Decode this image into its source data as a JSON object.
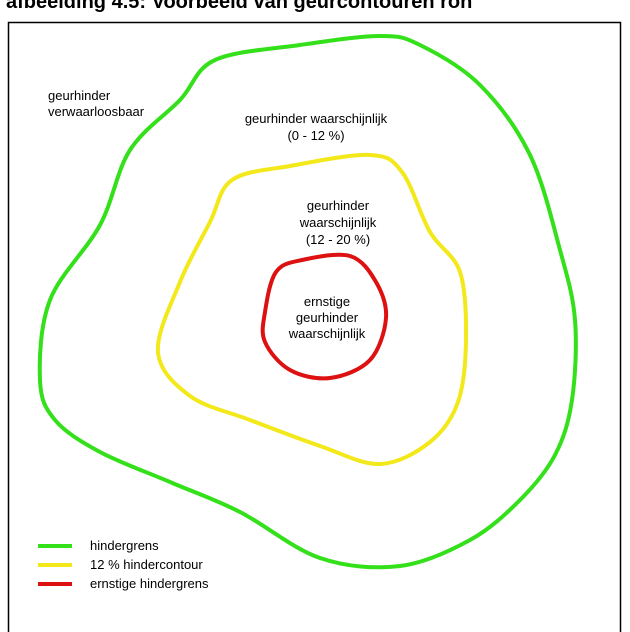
{
  "header": {
    "title": "afbeelding 4.5: Voorbeeld van geurcontouren ron"
  },
  "zones": [
    {
      "lines": [
        "geurhinder",
        "verwaarloosbaar"
      ]
    },
    {
      "lines": [
        "geurhinder waarschijnlijk",
        "(0 - 12 %)"
      ]
    },
    {
      "lines": [
        "geurhinder",
        "waarschijnlijk",
        "(12 - 20 %)"
      ]
    },
    {
      "lines": [
        "ernstige",
        "geurhinder",
        "waarschijnlijk"
      ]
    }
  ],
  "legend": [
    {
      "label": "hindergrens"
    },
    {
      "label": "12 % hindercontour"
    },
    {
      "label": "ernstige hindergrens"
    }
  ]
}
